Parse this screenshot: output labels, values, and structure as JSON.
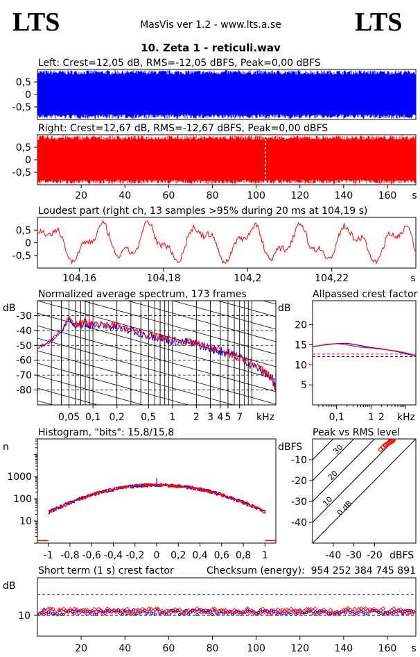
{
  "header": {
    "logo_left": "LTS",
    "logo_right": "LTS",
    "app_title": "MasVis ver 1.2 - www.lts.a.se",
    "track_title": "10. Zeta 1 - reticuli.wav"
  },
  "colors": {
    "left": "#0000ff",
    "right": "#ff0000",
    "axis": "#000000",
    "background": "#ffffff"
  },
  "chart_data": [
    {
      "id": "left-waveform",
      "type": "area",
      "title": "Left: Crest=12,05 dB, RMS=-12,05 dBFS, Peak=0,00 dBFS",
      "y_ticks": [
        "0,5",
        "0",
        "-0,5"
      ],
      "y_tick_values": [
        0.5,
        0,
        -0.5
      ],
      "ylim": [
        -1,
        1
      ],
      "xlim": [
        0,
        173
      ],
      "envelope": {
        "upper": 0.97,
        "lower": -0.97
      },
      "color": "#0000ff"
    },
    {
      "id": "right-waveform",
      "type": "area",
      "title": "Right: Crest=12,67 dB, RMS=-12,67 dBFS, Peak=0,00 dBFS",
      "y_ticks": [
        "0,5",
        "0",
        "-0,5"
      ],
      "y_tick_values": [
        0.5,
        0,
        -0.5
      ],
      "x_ticks": [
        "20",
        "40",
        "60",
        "80",
        "100",
        "120",
        "140",
        "160",
        "s"
      ],
      "x_tick_values": [
        20,
        40,
        60,
        80,
        100,
        120,
        140,
        160
      ],
      "xlim": [
        0,
        173
      ],
      "ylim": [
        -1,
        1
      ],
      "marker_at": 104.19,
      "envelope": {
        "upper": 0.97,
        "lower": -0.97
      },
      "color": "#ff0000"
    },
    {
      "id": "loudest-part",
      "type": "line",
      "title": "Loudest part (right ch, 13 samples >95% during 20 ms at 104,19 s)",
      "y_ticks": [
        "0,5",
        "0",
        "-0,5"
      ],
      "y_tick_values": [
        0.5,
        0,
        -0.5
      ],
      "x_ticks": [
        "104,16",
        "104,18",
        "104,2",
        "104,22",
        "s"
      ],
      "x_tick_values": [
        104.16,
        104.18,
        104.2,
        104.22
      ],
      "xlim": [
        104.15,
        104.24
      ],
      "ylim": [
        -1,
        1
      ],
      "color": "#ff0000"
    },
    {
      "id": "spectrum",
      "type": "line",
      "title": "Normalized average spectrum, 173 frames",
      "ylabel": "dB",
      "xlabel": "kHz",
      "y_ticks": [
        "-30",
        "-40",
        "-50",
        "-60",
        "-70",
        "-80"
      ],
      "y_tick_values": [
        -30,
        -40,
        -50,
        -60,
        -70,
        -80
      ],
      "x_ticks": [
        "0,05",
        "0,1",
        "0,2",
        "0,5",
        "1",
        "2",
        "3",
        "4",
        "5",
        "7"
      ],
      "x_tick_values": [
        0.05,
        0.1,
        0.2,
        0.5,
        1,
        2,
        3,
        4,
        5,
        7
      ],
      "xlim": [
        0.02,
        20
      ],
      "ylim": [
        -90,
        -20
      ],
      "x_scale": "log",
      "series": [
        {
          "color": "#0000ff",
          "points": [
            [
              0.02,
              -52
            ],
            [
              0.03,
              -46
            ],
            [
              0.04,
              -41
            ],
            [
              0.05,
              -32
            ],
            [
              0.06,
              -38
            ],
            [
              0.08,
              -36
            ],
            [
              0.1,
              -36
            ],
            [
              0.15,
              -37
            ],
            [
              0.2,
              -38
            ],
            [
              0.3,
              -40
            ],
            [
              0.5,
              -43
            ],
            [
              0.7,
              -45
            ],
            [
              1,
              -47
            ],
            [
              1.5,
              -48
            ],
            [
              2,
              -49
            ],
            [
              3,
              -52
            ],
            [
              4,
              -54
            ],
            [
              5,
              -55
            ],
            [
              7,
              -58
            ],
            [
              10,
              -63
            ],
            [
              14,
              -68
            ],
            [
              18,
              -72
            ],
            [
              20,
              -78
            ]
          ]
        },
        {
          "color": "#ff0000",
          "points": [
            [
              0.02,
              -52
            ],
            [
              0.03,
              -47
            ],
            [
              0.04,
              -40
            ],
            [
              0.05,
              -31
            ],
            [
              0.06,
              -37
            ],
            [
              0.08,
              -35
            ],
            [
              0.1,
              -35
            ],
            [
              0.15,
              -36
            ],
            [
              0.2,
              -37
            ],
            [
              0.3,
              -40
            ],
            [
              0.5,
              -43
            ],
            [
              0.7,
              -45
            ],
            [
              1,
              -46
            ],
            [
              1.5,
              -48
            ],
            [
              2,
              -49
            ],
            [
              3,
              -52
            ],
            [
              4,
              -53
            ],
            [
              5,
              -56
            ],
            [
              7,
              -58
            ],
            [
              10,
              -62
            ],
            [
              14,
              -67
            ],
            [
              18,
              -73
            ],
            [
              20,
              -79
            ]
          ]
        }
      ]
    },
    {
      "id": "allpassed-crest",
      "type": "line",
      "title": "Allpassed crest factor",
      "ylabel": "dB",
      "xlabel": "kHz",
      "y_ticks": [
        "20",
        "15",
        "10",
        "5"
      ],
      "y_tick_values": [
        20,
        15,
        10,
        5
      ],
      "x_ticks": [
        "0,1",
        "1",
        "2",
        "kHz"
      ],
      "x_tick_values": [
        0.1,
        1,
        2
      ],
      "xlim": [
        0.02,
        20
      ],
      "ylim": [
        0,
        26
      ],
      "x_scale": "log",
      "reference_lines": [
        12.05,
        12.67
      ],
      "series": [
        {
          "color": "#0000ff",
          "points": [
            [
              0.02,
              14.6
            ],
            [
              0.05,
              15
            ],
            [
              0.1,
              15.3
            ],
            [
              0.2,
              15.4
            ],
            [
              0.5,
              14.8
            ],
            [
              1,
              14.3
            ],
            [
              2,
              14
            ],
            [
              5,
              13.4
            ],
            [
              10,
              12.8
            ],
            [
              20,
              12.2
            ]
          ]
        },
        {
          "color": "#ff0000",
          "points": [
            [
              0.02,
              14.5
            ],
            [
              0.05,
              15.1
            ],
            [
              0.1,
              15.3
            ],
            [
              0.2,
              15
            ],
            [
              0.5,
              14.4
            ],
            [
              1,
              14.2
            ],
            [
              2,
              13.9
            ],
            [
              5,
              13.5
            ],
            [
              10,
              13
            ],
            [
              20,
              12.3
            ]
          ]
        }
      ]
    },
    {
      "id": "histogram",
      "type": "line",
      "title": "Histogram, \"bits\": 15,8/15,8",
      "ylabel": "n",
      "y_scale": "log",
      "y_ticks": [
        "1000",
        "100",
        "10"
      ],
      "y_tick_values": [
        1000,
        100,
        10
      ],
      "x_ticks": [
        "-1",
        "-0,8",
        "-0,6",
        "-0,4",
        "-0,2",
        "0",
        "0,2",
        "0,4",
        "0,6",
        "0,8",
        "1"
      ],
      "x_tick_values": [
        -1,
        -0.8,
        -0.6,
        -0.4,
        -0.2,
        0,
        0.2,
        0.4,
        0.6,
        0.8,
        1
      ],
      "xlim": [
        -1.1,
        1.1
      ],
      "ylim": [
        1,
        50000
      ],
      "peak": 420
    },
    {
      "id": "peak-vs-rms",
      "type": "scatter",
      "title": "Peak vs RMS level",
      "ylabel": "dBFS",
      "xlabel": "dBFS",
      "y_ticks": [
        "-10",
        "-20",
        "-30",
        "-40"
      ],
      "y_tick_values": [
        -10,
        -20,
        -30,
        -40
      ],
      "x_ticks": [
        "-40",
        "-30",
        "-20"
      ],
      "x_tick_values": [
        -40,
        -30,
        -20
      ],
      "xlim": [
        -50,
        0
      ],
      "ylim": [
        -50,
        0
      ],
      "diagonal_labels": [
        "40",
        "30",
        "20",
        "10",
        "0 dB"
      ],
      "diagonal_values": [
        40,
        30,
        20,
        10,
        0
      ],
      "points": [
        [
          -17,
          -5
        ],
        [
          -15,
          -3
        ],
        [
          -14,
          -2.5
        ],
        [
          -13,
          -2
        ],
        [
          -12.5,
          -1.5
        ],
        [
          -12,
          -1.2
        ],
        [
          -11.5,
          -1
        ],
        [
          -11,
          -0.8
        ],
        [
          -13.5,
          -2.2
        ],
        [
          -12.8,
          -1.4
        ],
        [
          -14.5,
          -3
        ],
        [
          -16,
          -4
        ]
      ]
    },
    {
      "id": "short-term-crest",
      "type": "scatter",
      "title": "Short term (1 s) crest factor",
      "checksum_label": "Checksum (energy):",
      "checksum_value": "954 252 384 745 891",
      "ylabel": "dB",
      "y_ticks": [
        "10"
      ],
      "y_tick_values": [
        10
      ],
      "x_ticks": [
        "20",
        "40",
        "60",
        "80",
        "100",
        "120",
        "140",
        "160",
        "s"
      ],
      "x_tick_values": [
        20,
        40,
        60,
        80,
        100,
        120,
        140,
        160
      ],
      "xlim": [
        0,
        173
      ],
      "ylim": [
        0,
        28
      ],
      "reference_lines": [
        10,
        20
      ],
      "mean": {
        "blue": 11.5,
        "red": 11.9
      }
    }
  ]
}
